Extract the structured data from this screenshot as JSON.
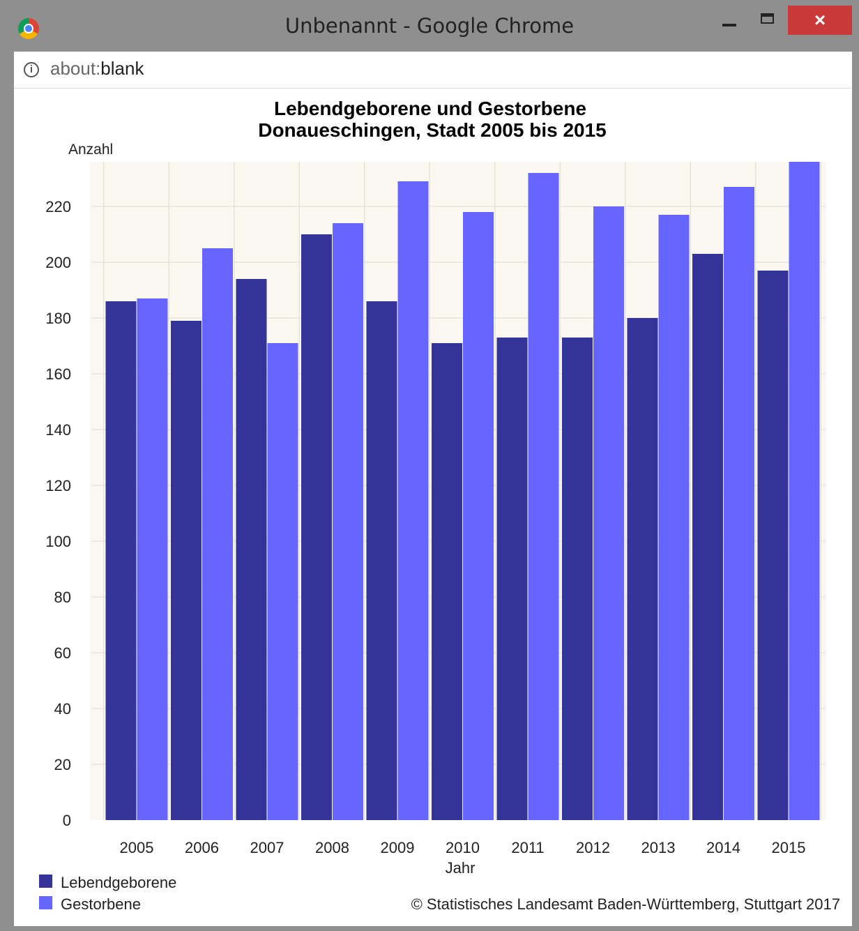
{
  "window": {
    "title": "Unbenannt - Google Chrome",
    "close_glyph": "×",
    "icons": [
      "chrome-icon",
      "minimize-icon",
      "maximize-icon",
      "close-icon",
      "info-icon"
    ]
  },
  "address": {
    "scheme": "about:",
    "path": "blank"
  },
  "colors": {
    "lebendgeborene": "#333399",
    "gestorbene": "#6666ff",
    "plot_background": "#faf8f0",
    "grid": "#e8e4da"
  },
  "chart_data": {
    "type": "bar",
    "title": "Lebendgeborene und Gestorbene",
    "subtitle": "Donaueschingen, Stadt 2005 bis 2015",
    "xlabel": "Jahr",
    "ylabel": "Anzahl",
    "categories": [
      "2005",
      "2006",
      "2007",
      "2008",
      "2009",
      "2010",
      "2011",
      "2012",
      "2013",
      "2014",
      "2015"
    ],
    "series": [
      {
        "name": "Lebendgeborene",
        "values": [
          186,
          179,
          194,
          210,
          186,
          171,
          173,
          173,
          180,
          203,
          197
        ]
      },
      {
        "name": "Gestorbene",
        "values": [
          187,
          205,
          171,
          214,
          229,
          218,
          232,
          220,
          217,
          227,
          236
        ]
      }
    ],
    "ylim": [
      0,
      236
    ],
    "yticks": [
      "0",
      "20",
      "40",
      "60",
      "80",
      "100",
      "120",
      "140",
      "160",
      "180",
      "200",
      "220"
    ],
    "grid": true,
    "legend_position": "bottom-left",
    "source": "© Statistisches Landesamt Baden-Württemberg, Stuttgart 2017"
  }
}
